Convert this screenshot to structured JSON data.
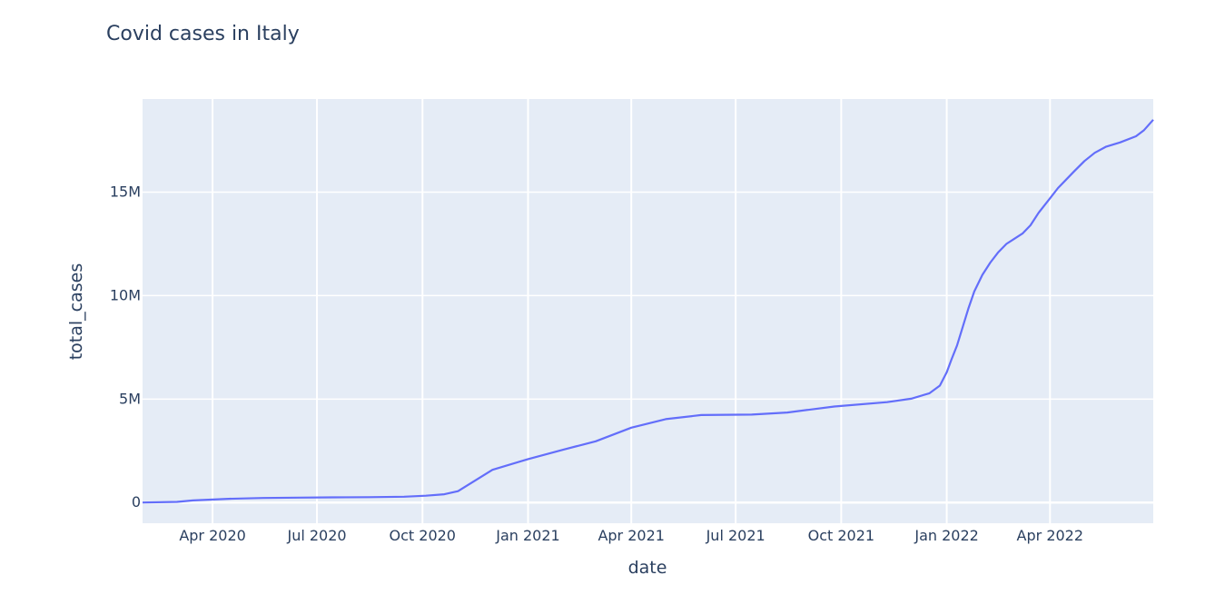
{
  "chart_data": {
    "type": "line",
    "title": "Covid cases in Italy",
    "xlabel": "date",
    "ylabel": "total_cases",
    "xlim": [
      "2020-01-31",
      "2022-06-30"
    ],
    "ylim": [
      -1000000,
      19500000
    ],
    "grid": true,
    "colors": {
      "line": "#636efa",
      "plot_bg": "#e5ecf6",
      "grid": "#ffffff",
      "text": "#2a3f5f"
    },
    "x_ticks": [
      {
        "date": "2020-04-01",
        "label": "Apr 2020"
      },
      {
        "date": "2020-07-01",
        "label": "Jul 2020"
      },
      {
        "date": "2020-10-01",
        "label": "Oct 2020"
      },
      {
        "date": "2021-01-01",
        "label": "Jan 2021"
      },
      {
        "date": "2021-04-01",
        "label": "Apr 2021"
      },
      {
        "date": "2021-07-01",
        "label": "Jul 2021"
      },
      {
        "date": "2021-10-01",
        "label": "Oct 2021"
      },
      {
        "date": "2022-01-01",
        "label": "Jan 2022"
      },
      {
        "date": "2022-04-01",
        "label": "Apr 2022"
      }
    ],
    "y_ticks": [
      {
        "value": 0,
        "label": "0"
      },
      {
        "value": 5000000,
        "label": "5M"
      },
      {
        "value": 10000000,
        "label": "10M"
      },
      {
        "value": 15000000,
        "label": "15M"
      }
    ],
    "series": [
      {
        "x": [
          "2020-01-31",
          "2020-03-01",
          "2020-03-15",
          "2020-04-15",
          "2020-05-15",
          "2020-06-15",
          "2020-07-15",
          "2020-08-15",
          "2020-09-15",
          "2020-10-04",
          "2020-10-20",
          "2020-11-01",
          "2020-12-01",
          "2021-01-01",
          "2021-02-01",
          "2021-03-01",
          "2021-04-01",
          "2021-05-01",
          "2021-06-01",
          "2021-07-15",
          "2021-08-15",
          "2021-09-25",
          "2021-11-10",
          "2021-12-01",
          "2021-12-17",
          "2021-12-26",
          "2022-01-01",
          "2022-01-05",
          "2022-01-10",
          "2022-01-15",
          "2022-01-20",
          "2022-01-25",
          "2022-02-01",
          "2022-02-08",
          "2022-02-15",
          "2022-02-22",
          "2022-03-01",
          "2022-03-08",
          "2022-03-15",
          "2022-03-22",
          "2022-04-01",
          "2022-04-08",
          "2022-04-15",
          "2022-04-22",
          "2022-05-01",
          "2022-05-10",
          "2022-05-20",
          "2022-06-01",
          "2022-06-15",
          "2022-06-22",
          "2022-06-30"
        ],
        "y": [
          0,
          30000,
          100000,
          180000,
          220000,
          240000,
          250000,
          260000,
          280000,
          330000,
          400000,
          550000,
          1580000,
          2100000,
          2560000,
          2960000,
          3620000,
          4030000,
          4230000,
          4250000,
          4350000,
          4640000,
          4850000,
          5020000,
          5280000,
          5650000,
          6300000,
          6900000,
          7600000,
          8500000,
          9400000,
          10200000,
          11000000,
          11600000,
          12100000,
          12500000,
          12750000,
          13000000,
          13400000,
          14000000,
          14700000,
          15200000,
          15600000,
          16000000,
          16500000,
          16900000,
          17200000,
          17400000,
          17700000,
          18000000,
          18500000
        ]
      }
    ]
  }
}
